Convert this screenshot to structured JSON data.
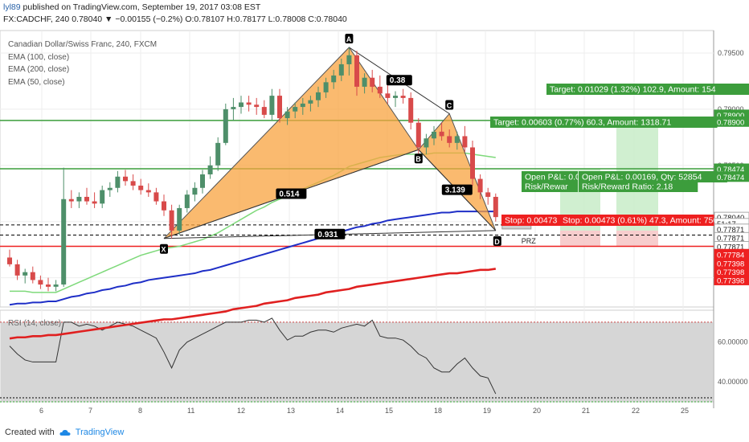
{
  "header": {
    "user": "lyl89",
    "published": "published on TradingView.com, September 19, 2017 03:08 EST",
    "symbol_line": "FX:CADCHF, 240  0.78040 ▼ −0.00155 (−0.2%) O:0.78107 H:0.78177 L:0.78008 C:0.78040"
  },
  "legend": {
    "title": "Canadian Dollar/Swiss Franc, 240, FXCM",
    "ema100": "EMA (100, close)",
    "ema200": "EMA (200, close)",
    "ema50": "EMA (50, close)",
    "rsi": "RSI (14, close)"
  },
  "footer": {
    "created_with": "Created with",
    "brand": "TradingView"
  },
  "colors": {
    "up": "#4e8f6a",
    "down": "#d84a4a",
    "ema50": "#7ed97a",
    "ema100": "#1f2fc7",
    "ema200": "#e02020",
    "pattern_fill": "#f8a33f",
    "target_green": "#3c9d3c",
    "stop_red": "#ee2020",
    "rsi_line": "#333333"
  },
  "chart_data": {
    "type": "candlestick",
    "title": "Canadian Dollar/Swiss Franc, 240, FXCM",
    "symbol": "FX:CADCHF",
    "interval": "240",
    "price_axis": {
      "ticks": [
        0.795,
        0.79,
        0.785,
        0.78,
        0.775
      ],
      "ylim": [
        0.7724,
        0.797
      ]
    },
    "x_axis": {
      "ticks": [
        "6",
        "7",
        "8",
        "11",
        "12",
        "13",
        "14",
        "15",
        "18",
        "19",
        "20",
        "21",
        "22",
        "25"
      ]
    },
    "candles": [
      [
        0.7768,
        0.7775,
        0.776,
        0.7762
      ],
      [
        0.7762,
        0.7766,
        0.7748,
        0.7752
      ],
      [
        0.7752,
        0.7758,
        0.7745,
        0.7755
      ],
      [
        0.7755,
        0.776,
        0.7745,
        0.7748
      ],
      [
        0.7748,
        0.7752,
        0.774,
        0.7744
      ],
      [
        0.7744,
        0.775,
        0.7738,
        0.7742
      ],
      [
        0.7742,
        0.7748,
        0.7738,
        0.7744
      ],
      [
        0.7744,
        0.7848,
        0.7742,
        0.782
      ],
      [
        0.782,
        0.7828,
        0.7812,
        0.7818
      ],
      [
        0.7818,
        0.7826,
        0.7812,
        0.7822
      ],
      [
        0.7822,
        0.783,
        0.7815,
        0.7818
      ],
      [
        0.7818,
        0.7826,
        0.7812,
        0.7816
      ],
      [
        0.7816,
        0.7832,
        0.7812,
        0.7828
      ],
      [
        0.7828,
        0.7835,
        0.7822,
        0.783
      ],
      [
        0.783,
        0.7845,
        0.7826,
        0.784
      ],
      [
        0.784,
        0.7846,
        0.7832,
        0.7836
      ],
      [
        0.7836,
        0.7842,
        0.7828,
        0.7832
      ],
      [
        0.7832,
        0.7838,
        0.7824,
        0.7828
      ],
      [
        0.7828,
        0.7834,
        0.7822,
        0.7826
      ],
      [
        0.7826,
        0.783,
        0.7815,
        0.7818
      ],
      [
        0.7818,
        0.7824,
        0.7805,
        0.781
      ],
      [
        0.781,
        0.7815,
        0.7785,
        0.7792
      ],
      [
        0.7792,
        0.7815,
        0.7788,
        0.7812
      ],
      [
        0.7812,
        0.7828,
        0.7808,
        0.7824
      ],
      [
        0.7824,
        0.7835,
        0.7818,
        0.783
      ],
      [
        0.783,
        0.7846,
        0.7825,
        0.7842
      ],
      [
        0.7842,
        0.7858,
        0.7838,
        0.785
      ],
      [
        0.785,
        0.7875,
        0.7845,
        0.787
      ],
      [
        0.787,
        0.7905,
        0.7868,
        0.79
      ],
      [
        0.79,
        0.791,
        0.789,
        0.7902
      ],
      [
        0.7902,
        0.7912,
        0.7896,
        0.7906
      ],
      [
        0.7906,
        0.7912,
        0.7898,
        0.7904
      ],
      [
        0.7904,
        0.791,
        0.7895,
        0.7902
      ],
      [
        0.7902,
        0.7908,
        0.7892,
        0.7895
      ],
      [
        0.7895,
        0.7918,
        0.789,
        0.7912
      ],
      [
        0.7912,
        0.7918,
        0.7888,
        0.7892
      ],
      [
        0.7892,
        0.7902,
        0.7886,
        0.7898
      ],
      [
        0.7898,
        0.7906,
        0.7892,
        0.7902
      ],
      [
        0.7902,
        0.791,
        0.7895,
        0.7905
      ],
      [
        0.7905,
        0.7912,
        0.7898,
        0.7908
      ],
      [
        0.7908,
        0.792,
        0.7902,
        0.7915
      ],
      [
        0.7915,
        0.7928,
        0.791,
        0.7924
      ],
      [
        0.7924,
        0.7935,
        0.7918,
        0.793
      ],
      [
        0.793,
        0.7945,
        0.7925,
        0.794
      ],
      [
        0.794,
        0.7955,
        0.793,
        0.7948
      ],
      [
        0.7948,
        0.7952,
        0.7912,
        0.792
      ],
      [
        0.792,
        0.7932,
        0.7914,
        0.7928
      ],
      [
        0.7928,
        0.7935,
        0.7915,
        0.792
      ],
      [
        0.792,
        0.793,
        0.791,
        0.7914
      ],
      [
        0.7914,
        0.7922,
        0.7905,
        0.791
      ],
      [
        0.791,
        0.7916,
        0.7902,
        0.7912
      ],
      [
        0.7912,
        0.7918,
        0.7905,
        0.791
      ],
      [
        0.791,
        0.7915,
        0.7882,
        0.7888
      ],
      [
        0.7888,
        0.7892,
        0.786,
        0.7866
      ],
      [
        0.7866,
        0.7878,
        0.786,
        0.7874
      ],
      [
        0.7874,
        0.7885,
        0.7868,
        0.788
      ],
      [
        0.788,
        0.7888,
        0.7872,
        0.7876
      ],
      [
        0.7876,
        0.7882,
        0.7866,
        0.787
      ],
      [
        0.787,
        0.788,
        0.7864,
        0.7876
      ],
      [
        0.7876,
        0.7885,
        0.7862,
        0.7866
      ],
      [
        0.7866,
        0.7872,
        0.7832,
        0.7838
      ],
      [
        0.7838,
        0.7842,
        0.782,
        0.7826
      ],
      [
        0.7826,
        0.783,
        0.7815,
        0.7822
      ],
      [
        0.7822,
        0.7825,
        0.78,
        0.7804
      ]
    ],
    "ema50": [
      0.7738,
      0.7738,
      0.7738,
      0.7737,
      0.7737,
      0.7737,
      0.7737,
      0.774,
      0.7743,
      0.7746,
      0.7749,
      0.7752,
      0.7755,
      0.7758,
      0.7761,
      0.7764,
      0.7767,
      0.777,
      0.7772,
      0.7774,
      0.7776,
      0.7777,
      0.7778,
      0.778,
      0.7782,
      0.7784,
      0.7787,
      0.779,
      0.7794,
      0.7798,
      0.7802,
      0.7806,
      0.781,
      0.7813,
      0.7817,
      0.782,
      0.7823,
      0.7826,
      0.7829,
      0.7832,
      0.7835,
      0.7838,
      0.7841,
      0.7845,
      0.7849,
      0.7851,
      0.7853,
      0.7855,
      0.7857,
      0.7858,
      0.7859,
      0.786,
      0.786,
      0.786,
      0.786,
      0.7861,
      0.7861,
      0.7861,
      0.7861,
      0.7861,
      0.786,
      0.7859,
      0.7858,
      0.7857
    ],
    "ema100": [
      0.7726,
      0.7727,
      0.7727,
      0.7728,
      0.7728,
      0.7729,
      0.7729,
      0.7731,
      0.7733,
      0.7734,
      0.7736,
      0.7737,
      0.7739,
      0.774,
      0.7742,
      0.7743,
      0.7745,
      0.7746,
      0.7748,
      0.7749,
      0.775,
      0.7751,
      0.7752,
      0.7753,
      0.7754,
      0.7756,
      0.7757,
      0.7759,
      0.7761,
      0.7763,
      0.7765,
      0.7767,
      0.7769,
      0.7771,
      0.7773,
      0.7775,
      0.7777,
      0.7779,
      0.7781,
      0.7783,
      0.7785,
      0.7787,
      0.7789,
      0.7791,
      0.7793,
      0.7795,
      0.7796,
      0.7798,
      0.7799,
      0.7801,
      0.7802,
      0.7803,
      0.7804,
      0.7805,
      0.7806,
      0.7807,
      0.7808,
      0.7808,
      0.7809,
      0.7809,
      0.7809,
      0.7809,
      0.7809,
      0.7809
    ],
    "ema200": [
      0.7696,
      0.7697,
      0.7697,
      0.7698,
      0.7698,
      0.7699,
      0.7699,
      0.77,
      0.7701,
      0.7702,
      0.7703,
      0.7704,
      0.7705,
      0.7706,
      0.7707,
      0.7708,
      0.7709,
      0.771,
      0.7711,
      0.7712,
      0.7713,
      0.7713,
      0.7714,
      0.7715,
      0.7716,
      0.7717,
      0.7718,
      0.7719,
      0.772,
      0.7722,
      0.7723,
      0.7724,
      0.7725,
      0.7727,
      0.7728,
      0.7729,
      0.773,
      0.7732,
      0.7733,
      0.7734,
      0.7735,
      0.7737,
      0.7738,
      0.7739,
      0.774,
      0.7742,
      0.7743,
      0.7744,
      0.7745,
      0.7746,
      0.7747,
      0.7748,
      0.7749,
      0.775,
      0.7751,
      0.7752,
      0.7753,
      0.7754,
      0.7754,
      0.7755,
      0.7756,
      0.7757,
      0.7757,
      0.7758
    ],
    "levels": [
      {
        "price": 0.789,
        "color": "#3c9d3c"
      },
      {
        "price": 0.7847,
        "color": "#3c9d3c"
      },
      {
        "price": 0.7778,
        "color": "#ee2020"
      },
      {
        "price": 0.7797,
        "color": "#000000",
        "dashed": true
      },
      {
        "price": 0.7788,
        "color": "#000000",
        "dashed": true
      }
    ],
    "harmonic": {
      "points": [
        {
          "label": "X",
          "bar": 20,
          "price": 0.7785
        },
        {
          "label": "A",
          "bar": 44,
          "price": 0.7955
        },
        {
          "label": "B",
          "bar": 53,
          "price": 0.7864
        },
        {
          "label": "C",
          "bar": 57,
          "price": 0.7896
        },
        {
          "label": "D",
          "bar": 63,
          "price": 0.7792
        }
      ],
      "ratios": [
        {
          "text": "0.514",
          "from": "X",
          "to": "B"
        },
        {
          "text": "0.38",
          "from": "A",
          "to": "C"
        },
        {
          "text": "3.139",
          "from": "B",
          "to": "D"
        },
        {
          "text": "0.931",
          "from": "X",
          "to": "D"
        }
      ],
      "prz_label": "PRZ"
    },
    "positions": [
      {
        "target": "Target: 0.01029 (1.32%) 102.9, Amount: 154",
        "pnl": "Open P&L: 0.00169, Qty: 52854",
        "rr": "Risk/Reward Ratio: 2.18",
        "stop": "Stop: 0.00473 (0.61%) 47.3, Amount: 750"
      },
      {
        "target": "Target: 0.00603 (0.77%) 60.3, Amount: 1318.71",
        "pnl": "Open P&L: 0.0",
        "rr": "Risk/Rewar",
        "stop": "Stop: 0.00473"
      }
    ],
    "price_labels": [
      {
        "text": "0.78900",
        "price": 0.7895,
        "color": "#3c9d3c"
      },
      {
        "text": "0.78900",
        "price": 0.7889,
        "color": "#3c9d3c"
      },
      {
        "text": "0.78474",
        "price": 0.7847,
        "color": "#3c9d3c"
      },
      {
        "text": "0.78474",
        "price": 0.784,
        "color": "#3c9d3c"
      },
      {
        "text": "0.78040",
        "price": 0.7804,
        "color": "#ffffff"
      },
      {
        "text": "51:17",
        "price": 0.77985,
        "color": "#ffffff"
      },
      {
        "text": "0.77871",
        "price": 0.77935,
        "color": "#ffffff"
      },
      {
        "text": "0.77871",
        "price": 0.7786,
        "color": "#ffffff"
      },
      {
        "text": "0.77871",
        "price": 0.7778,
        "color": "#ffffff"
      },
      {
        "text": "0.77784",
        "price": 0.7771,
        "color": "#ee2020"
      },
      {
        "text": "0.77398",
        "price": 0.7763,
        "color": "#ee2020"
      },
      {
        "text": "0.77398",
        "price": 0.77555,
        "color": "#ee2020"
      },
      {
        "text": "0.77398",
        "price": 0.7748,
        "color": "#ee2020"
      }
    ],
    "rsi": {
      "title": "RSI (14, close)",
      "ticks": [
        60,
        40
      ],
      "ylim": [
        30,
        76
      ],
      "bands": [
        70,
        30
      ],
      "values": [
        58,
        54,
        51,
        50,
        50,
        50,
        50,
        70,
        70,
        68,
        69,
        68,
        66,
        68,
        70,
        69,
        68,
        66,
        64,
        62,
        55,
        47,
        56,
        60,
        62,
        64,
        66,
        68,
        70,
        70,
        70,
        71,
        71,
        70,
        72,
        66,
        61,
        63,
        63,
        65,
        66,
        66,
        65,
        67,
        68,
        69,
        68,
        71,
        63,
        62,
        62,
        61,
        58,
        54,
        52,
        47,
        45,
        45,
        49,
        52,
        47,
        43,
        42,
        34
      ]
    }
  }
}
